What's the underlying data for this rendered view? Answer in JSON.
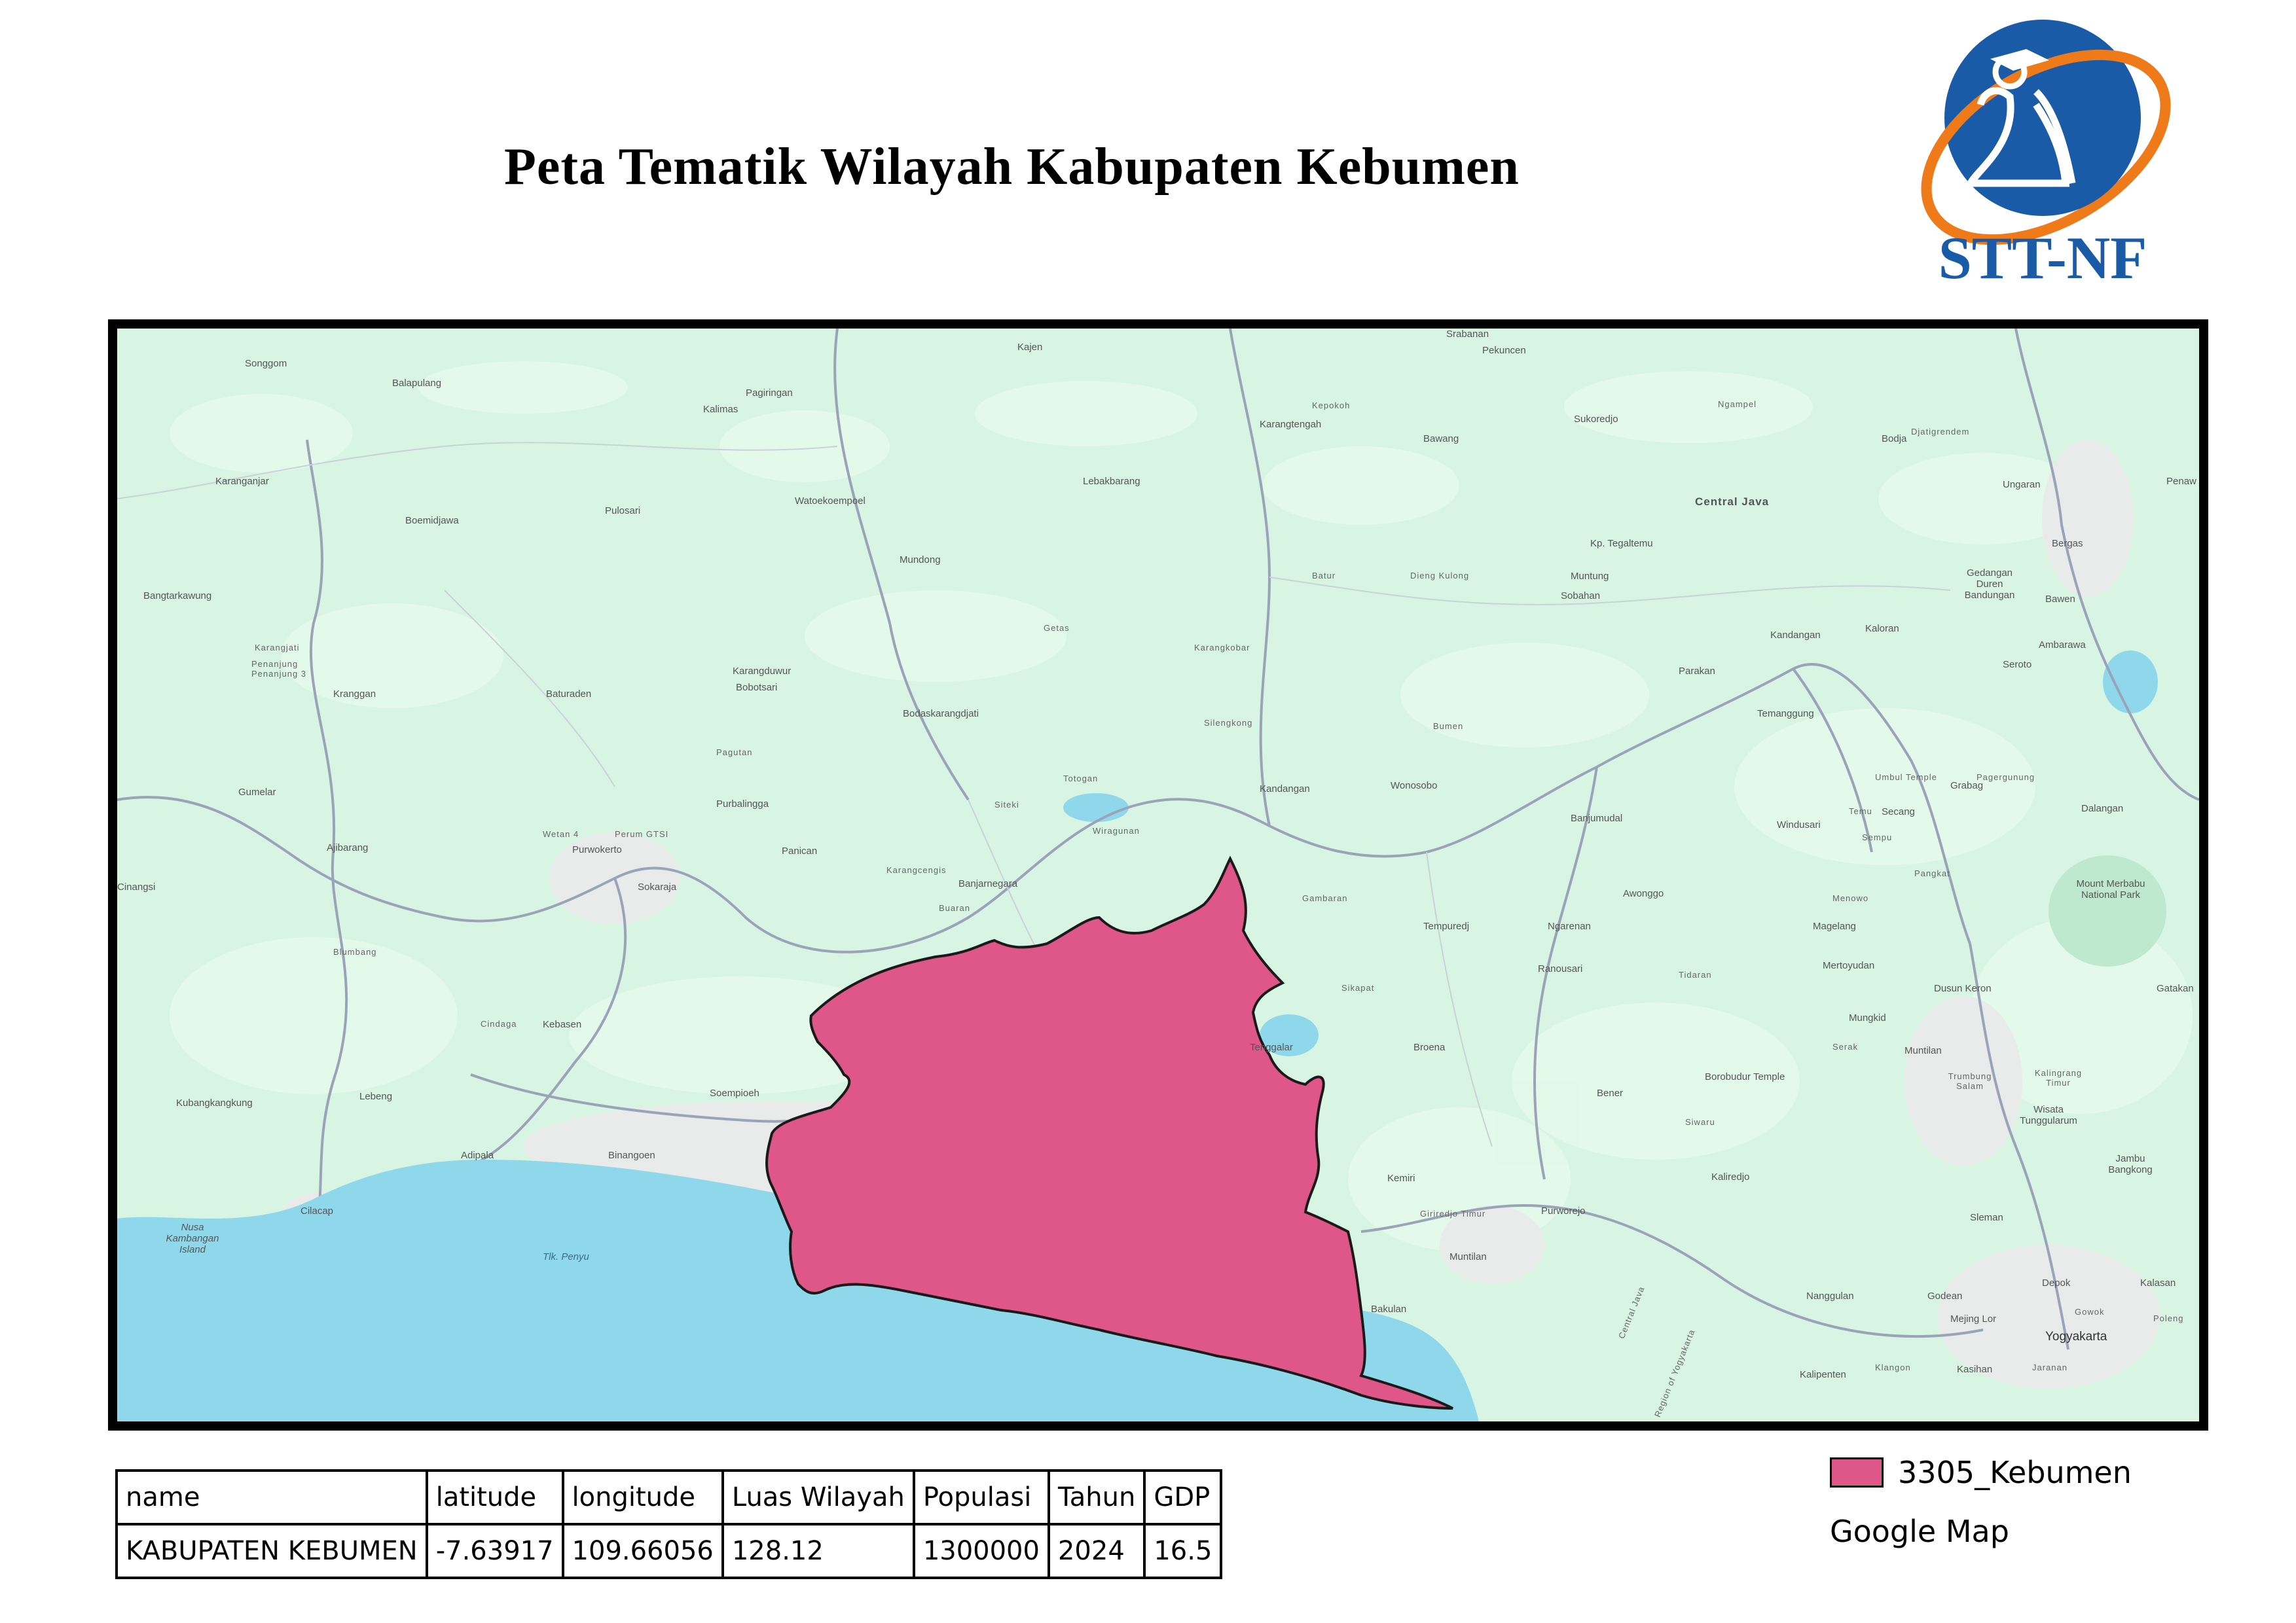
{
  "page": {
    "title": "Peta Tematik Wilayah Kabupaten Kebumen"
  },
  "logo": {
    "text": "STT-NF",
    "colors": {
      "blue": "#1a5ba8",
      "orange": "#ef7a1a"
    }
  },
  "map": {
    "colors": {
      "land": "#d7f5e2",
      "sea": "#8fd8ec",
      "roads": "#9aa3b8",
      "urban": "#e9ece9",
      "region_fill": "#df5689",
      "region_outline": "#1a1a1a"
    },
    "place_labels": [
      "Songgom",
      "Balapulang",
      "Kajen",
      "Srabanan",
      "Pekuncen",
      "Pagiringan",
      "Kalimas",
      "Kepokoh",
      "Karangtengah",
      "Bawang",
      "Sukoredjo",
      "Ngampel",
      "Bodja",
      "Djatigrendem",
      "Karanganjar",
      "Lebakbarang",
      "Boemidjawa",
      "Pulosari",
      "Watoekoempoel",
      "Central Java",
      "Ungaran",
      "Penaw",
      "Kp. Tegaltemu",
      "Mundong",
      "Batur",
      "Dieng Kulong",
      "Muntung",
      "Sobahan",
      "Bergas",
      "Gedangan Duren Bandungan",
      "Bawen",
      "Bangtarkawung",
      "Getas",
      "Karangkobar",
      "Kandangan",
      "Kaloran",
      "Ambarawa",
      "Karangjati",
      "Penanjung Penanjung 3",
      "Kranggan",
      "Baturaden",
      "Karangduwur",
      "Bobotsari",
      "Parakan",
      "Seroto",
      "Bodaskarangdjati",
      "Silengkong",
      "Bumen",
      "Temanggung",
      "Pagutan",
      "Totogan",
      "Umbul Temple",
      "Pagergunung",
      "Gumelar",
      "Purbalingga",
      "Siteki",
      "Kandangan",
      "Wonosobo",
      "Grabag",
      "Wetan 4",
      "Perum GTSI",
      "Temu",
      "Secang",
      "Dalangan",
      "Ajibarang",
      "Purwokerto",
      "Panican",
      "Wiragunan",
      "Banjumudal",
      "Windusari",
      "Cinangsi",
      "Sokaraja",
      "Karangcengis",
      "Banjarnegara",
      "Sempu",
      "Pangkat",
      "Buaran",
      "Gambaran",
      "Tempuredj",
      "Awonggo",
      "Menowo",
      "Mount Merbabu National Park",
      "Ngarenan",
      "Magelang",
      "Blumbang",
      "Ranousari",
      "Tidaran",
      "Mertoyudan",
      "Sikapat",
      "Dusun Keron",
      "Gatakan",
      "Cindaga",
      "Kebasen",
      "Mungkid",
      "Tenggalar",
      "Broena",
      "Serak",
      "Muntilan",
      "Soempioeh",
      "Kubangkangkung",
      "Lebeng",
      "Bener",
      "Borobudur Temple",
      "Trumbung Salam",
      "Kalingrang Timur",
      "Siwaru",
      "Wisata Tunggularum",
      "Adipala",
      "Binangoen",
      "Kemiri",
      "Kaliredjo",
      "Jambu Bangkong",
      "Cilacap",
      "Giriredjo Timur",
      "Purworejo",
      "Sleman",
      "Nusa Kambangan Island",
      "Tlk. Penyu",
      "Muntilan",
      "Central Java",
      "Depok",
      "Kalasan",
      "Bakulan",
      "Nanggulan",
      "Godean",
      "Mejing Lor",
      "Gowok",
      "Yogyakarta",
      "Poleng",
      "Kalipenten",
      "Klangon",
      "Kasihan",
      "Jaranan",
      "Region of Yogyakarta"
    ]
  },
  "table": {
    "headers": [
      "name",
      "latitude",
      "longitude",
      "Luas Wilayah",
      "Populasi",
      "Tahun",
      "GDP"
    ],
    "rows": [
      [
        "KABUPATEN KEBUMEN",
        "-7.63917",
        "109.66056",
        "128.12",
        "1300000",
        "2024",
        "16.5"
      ]
    ]
  },
  "legend": {
    "items": [
      {
        "label": "3305_Kebumen",
        "color": "#df5689"
      }
    ],
    "basemap_label": "Google Map"
  }
}
